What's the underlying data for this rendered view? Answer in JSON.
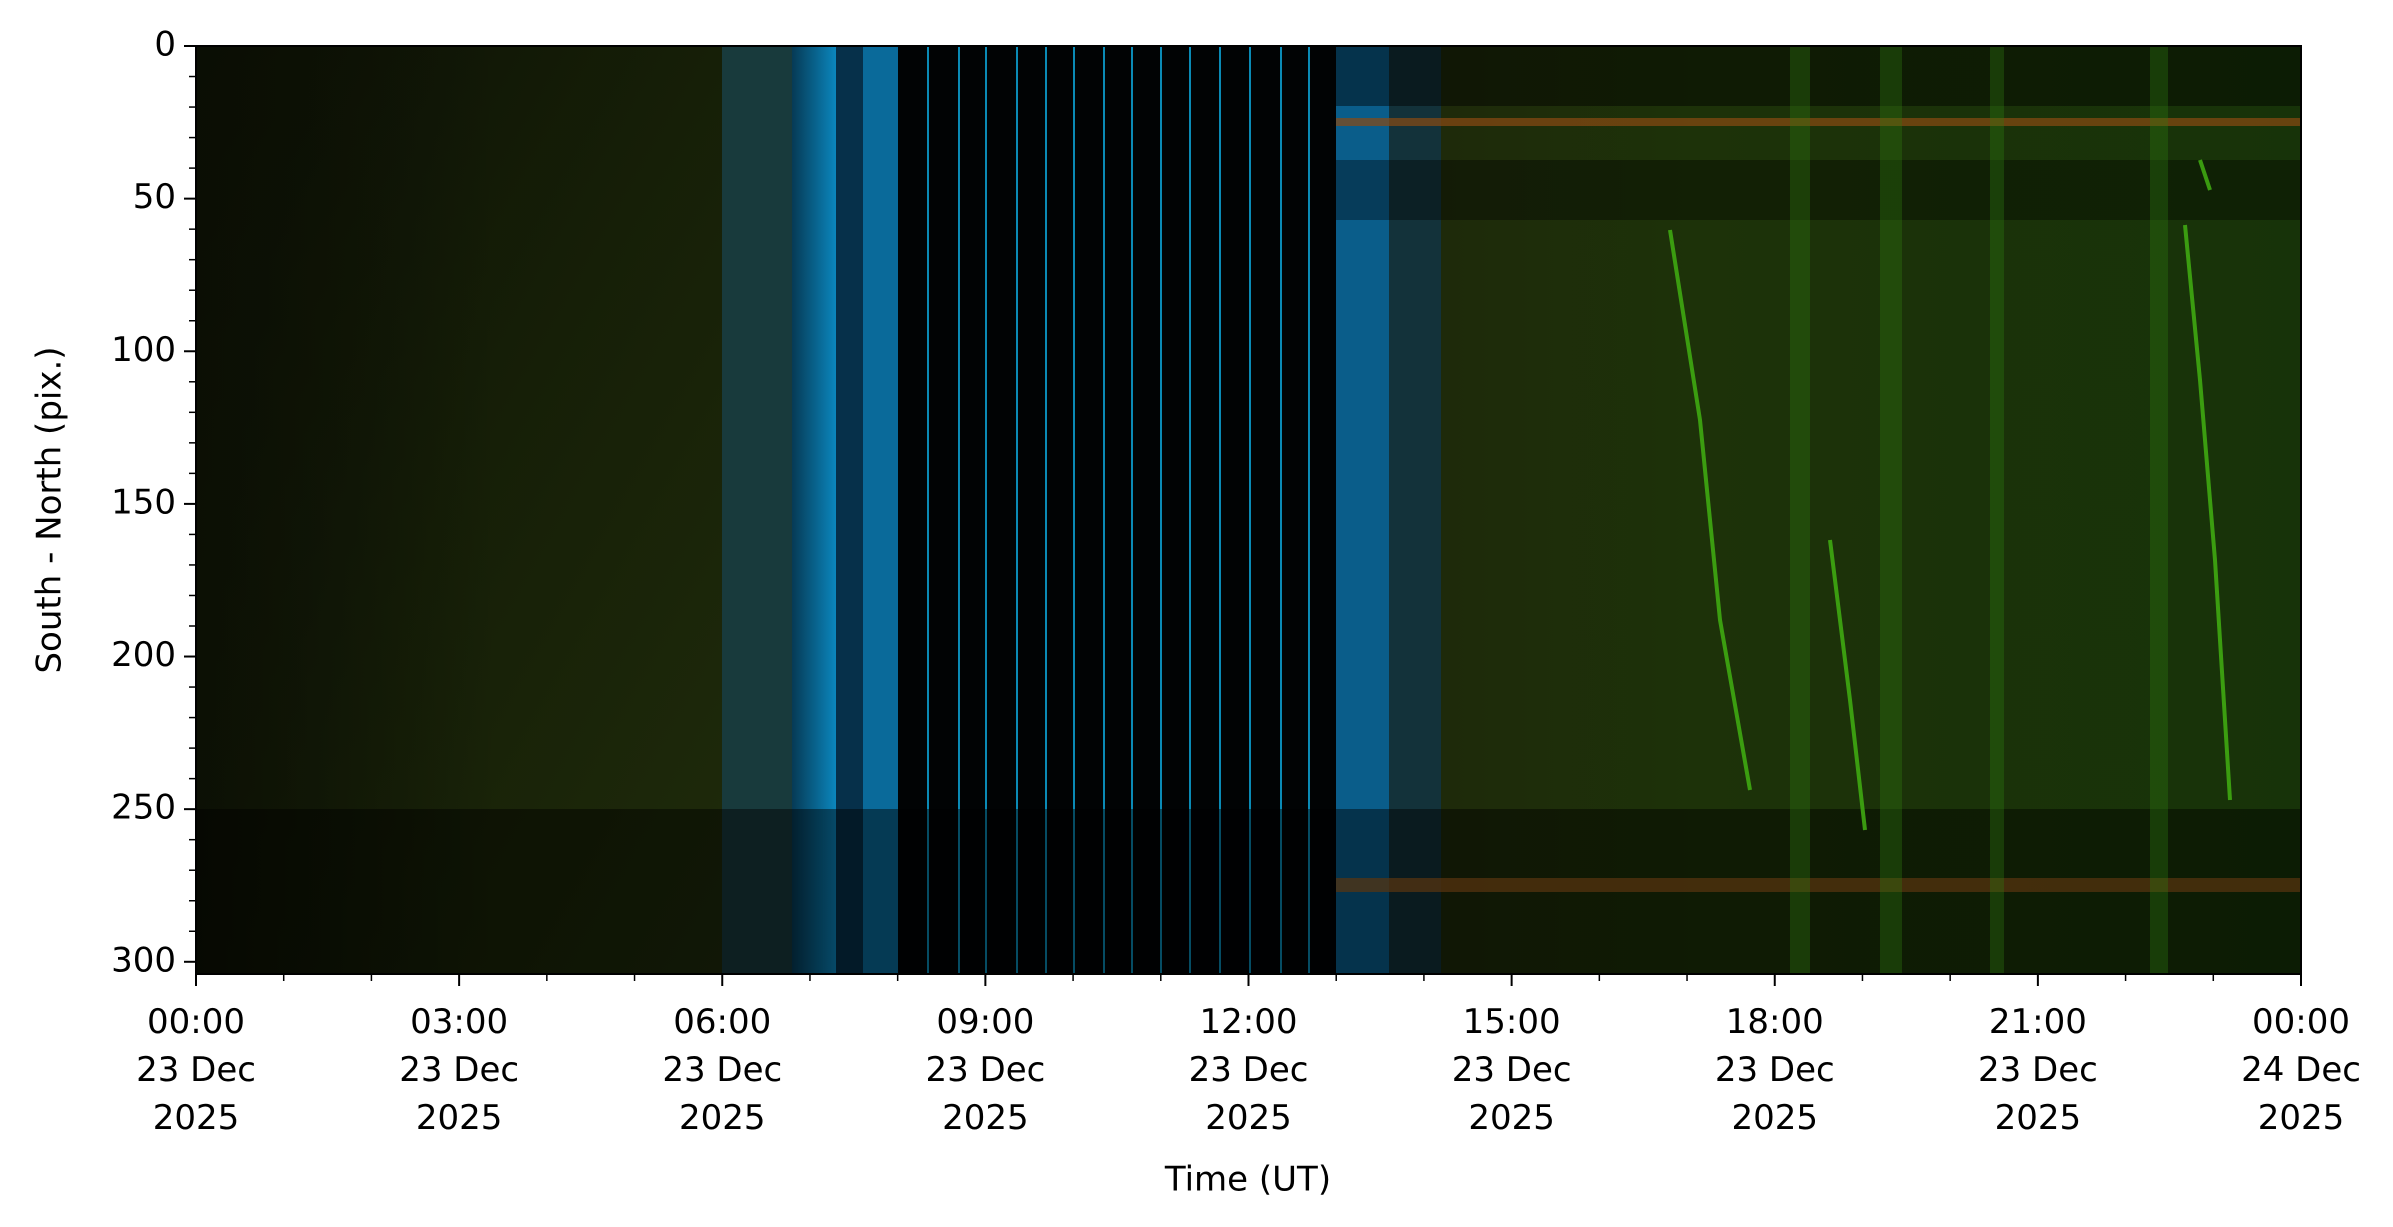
{
  "chart_data": {
    "type": "keogram",
    "xlabel": "Time (UT)",
    "ylabel": "South - North (pix.)",
    "xlim": [
      "2025-12-23T00:00",
      "2025-12-24T00:00"
    ],
    "xticks": [
      {
        "value": "2025-12-23T00:00",
        "label": "00:00\n23 Dec\n2025"
      },
      {
        "value": "2025-12-23T03:00",
        "label": "03:00\n23 Dec\n2025"
      },
      {
        "value": "2025-12-23T06:00",
        "label": "06:00\n23 Dec\n2025"
      },
      {
        "value": "2025-12-23T09:00",
        "label": "09:00\n23 Dec\n2025"
      },
      {
        "value": "2025-12-23T12:00",
        "label": "12:00\n23 Dec\n2025"
      },
      {
        "value": "2025-12-23T15:00",
        "label": "15:00\n23 Dec\n2025"
      },
      {
        "value": "2025-12-23T18:00",
        "label": "18:00\n23 Dec\n2025"
      },
      {
        "value": "2025-12-23T21:00",
        "label": "21:00\n23 Dec\n2025"
      },
      {
        "value": "2025-12-24T00:00",
        "label": "00:00\n24 Dec\n2025"
      }
    ],
    "ylim": [
      0,
      304
    ],
    "y_inverted": true,
    "yticks": [
      0,
      50,
      100,
      150,
      200,
      250,
      300
    ]
  }
}
